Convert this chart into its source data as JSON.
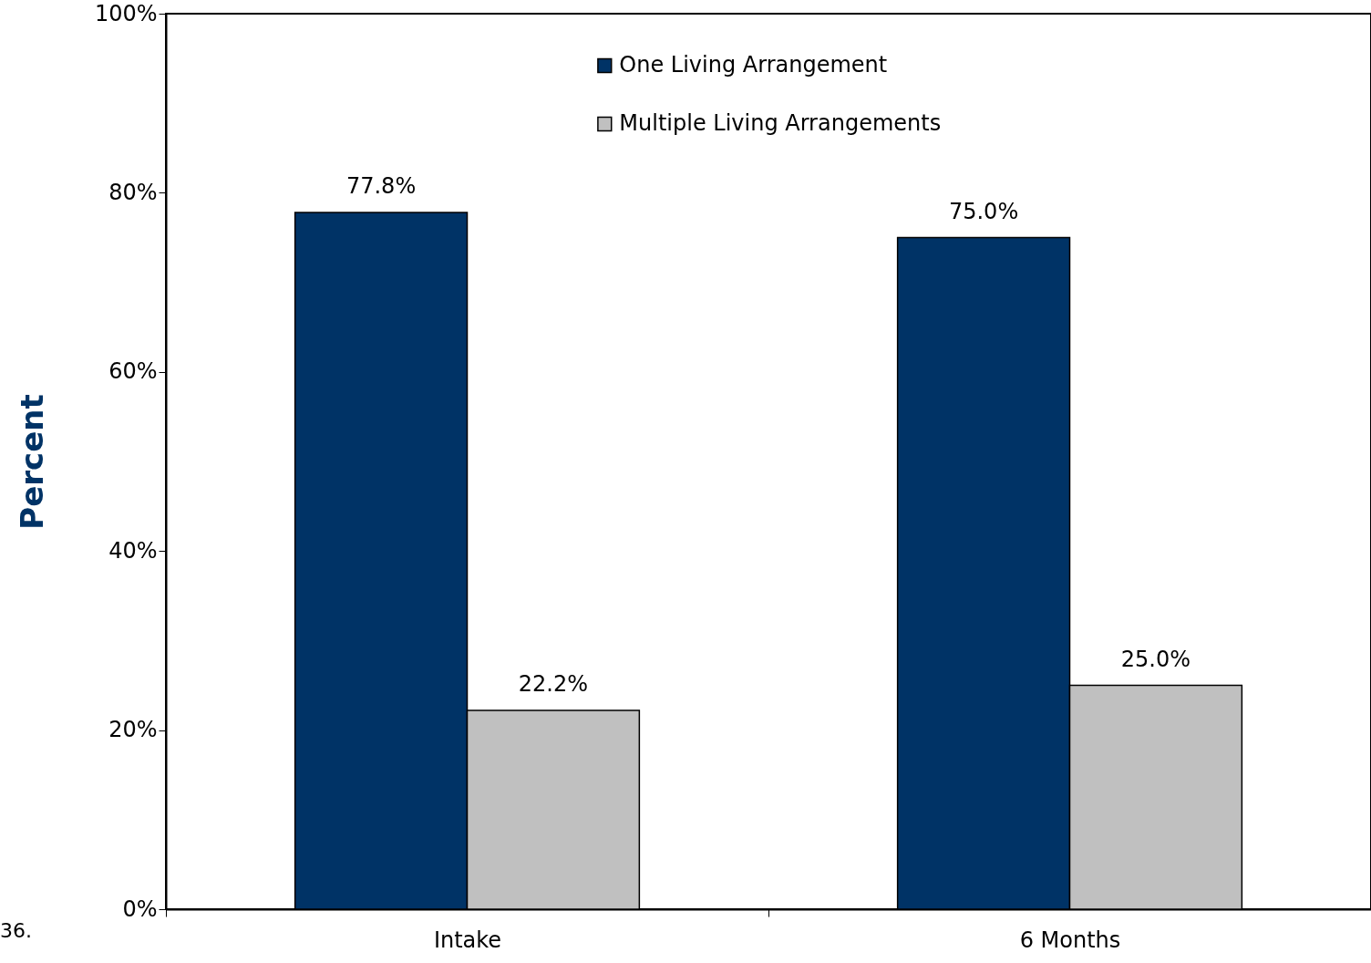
{
  "chart_data": {
    "type": "bar",
    "ylabel": "Percent",
    "categories": [
      "Intake",
      "6 Months"
    ],
    "series": [
      {
        "name": "One Living Arrangement",
        "color": "#003366",
        "values": [
          77.8,
          75.0
        ],
        "value_labels": [
          "77.8%",
          "75.0%"
        ]
      },
      {
        "name": "Multiple Living Arrangements",
        "color": "#c0c0c0",
        "values": [
          22.2,
          25.0
        ],
        "value_labels": [
          "22.2%",
          "25.0%"
        ]
      }
    ],
    "ylim": [
      0,
      100
    ],
    "yticks": [
      {
        "value": 0,
        "label": "0%"
      },
      {
        "value": 20,
        "label": "20%"
      },
      {
        "value": 40,
        "label": "40%"
      },
      {
        "value": 60,
        "label": "60%"
      },
      {
        "value": 80,
        "label": "80%"
      },
      {
        "value": 100,
        "label": "100%"
      }
    ],
    "grid": false,
    "legend": "top",
    "annotations": [
      "36."
    ]
  }
}
